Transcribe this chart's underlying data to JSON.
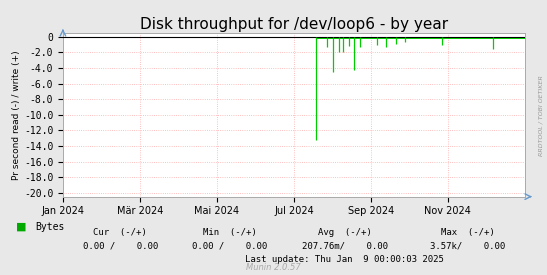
{
  "title": "Disk throughput for /dev/loop6 - by year",
  "ylabel": "Pr second read (-) / write (+)",
  "bg_color": "#e8e8e8",
  "plot_bg_color": "#ffffff",
  "grid_color": "#ffaaaa",
  "border_color": "#aaaaaa",
  "ylim": [
    -20.5,
    0.5
  ],
  "ytick_vals": [
    0.0,
    -2.0,
    -4.0,
    -6.0,
    -8.0,
    -10.0,
    -12.0,
    -14.0,
    -16.0,
    -18.0,
    -20.0
  ],
  "ytick_labels": [
    "0",
    "-2.0",
    "-4.0",
    "-6.0",
    "-8.0",
    "-10.0",
    "-12.0",
    "-14.0",
    "-16.0",
    "-18.0",
    "-20.0"
  ],
  "xticklabels": [
    "Jan 2024",
    "Mär 2024",
    "Mai 2024",
    "Jul 2024",
    "Sep 2024",
    "Nov 2024"
  ],
  "xtick_positions": [
    0.0,
    0.167,
    0.333,
    0.5,
    0.667,
    0.833
  ],
  "line_color": "#00cc00",
  "legend_color": "#00aa00",
  "title_fontsize": 11,
  "tick_fontsize": 7,
  "footer_text": "Munin 2.0.57",
  "legend_label": "Bytes",
  "right_label": "RRDTOOL / TOBI OETIKER",
  "spike_x": [
    0.547,
    0.572,
    0.585,
    0.597,
    0.605,
    0.618,
    0.63,
    0.643,
    0.68,
    0.7,
    0.72,
    0.74,
    0.82,
    0.93
  ],
  "spike_y": [
    -13.2,
    -1.3,
    -4.5,
    -1.9,
    -2.0,
    -1.2,
    -4.2,
    -1.3,
    -1.1,
    -1.3,
    -0.9,
    -0.6,
    -1.1,
    -1.6
  ],
  "zero_line_start": 0.547,
  "arrow_color": "#6699cc"
}
